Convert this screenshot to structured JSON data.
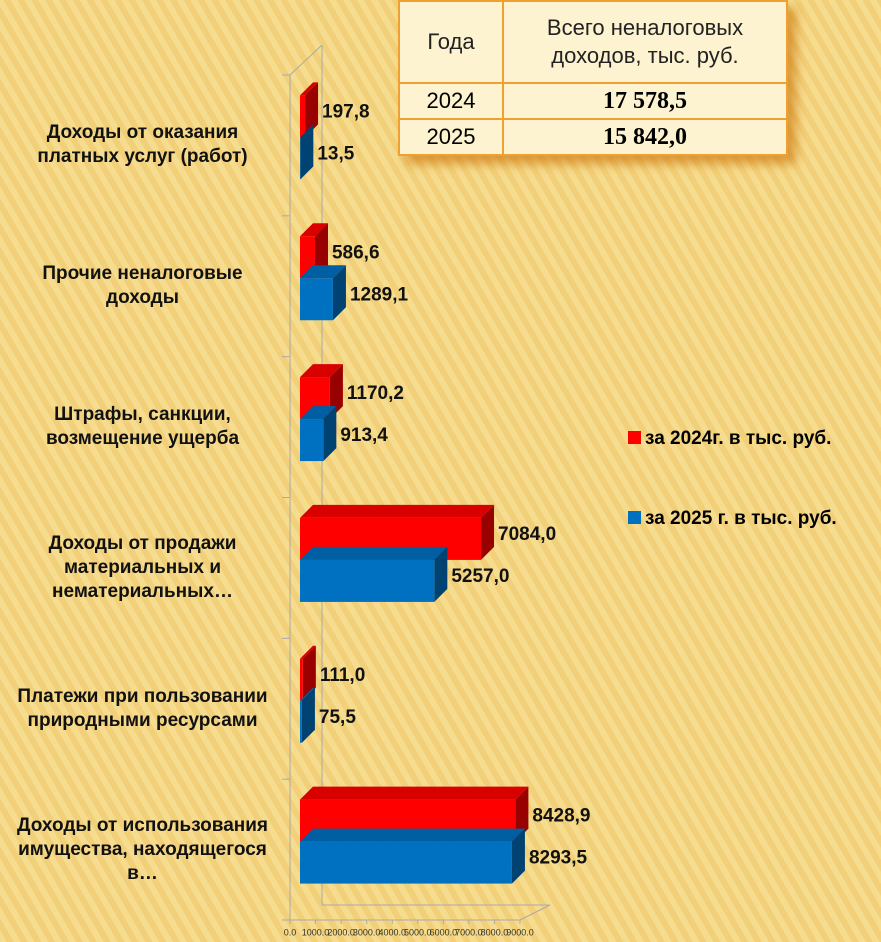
{
  "chart_data": {
    "type": "barh",
    "categories": [
      "Доходы от оказания платных услуг (работ)",
      "Прочие неналоговые доходы",
      "Штрафы, санкции, возмещение ущерба",
      "Доходы от продажи материальных и нематериальных…",
      "Платежи при пользовании природными ресурсами",
      "Доходы от использования имущества, находящегося в…"
    ],
    "series": [
      {
        "name": "за 2024г. в тыс. руб.",
        "color": "#ff0000",
        "values": [
          197.8,
          586.6,
          1170.2,
          7084.0,
          111.0,
          8428.9
        ],
        "value_labels": [
          "197,8",
          "586,6",
          "1170,2",
          "7084,0",
          "111,0",
          "8428,9"
        ]
      },
      {
        "name": "за 2025 г. в тыс. руб.",
        "color": "#0070c0",
        "values": [
          13.5,
          1289.1,
          913.4,
          5257.0,
          75.5,
          8293.5
        ],
        "value_labels": [
          "13,5",
          "1289,1",
          "913,4",
          "5257,0",
          "75,5",
          "8293,5"
        ]
      }
    ],
    "xlim": [
      0,
      9000
    ],
    "xticks": [
      {
        "value": 0,
        "label": "0.0"
      },
      {
        "value": 1000,
        "label": "1000.0"
      },
      {
        "value": 2000,
        "label": "2000.0"
      },
      {
        "value": 3000,
        "label": "3000.0"
      },
      {
        "value": 4000,
        "label": "4000.0"
      },
      {
        "value": 5000,
        "label": "5000.0"
      },
      {
        "value": 6000,
        "label": "6000.0"
      },
      {
        "value": 7000,
        "label": "7000.0"
      },
      {
        "value": 8000,
        "label": "8000.0"
      },
      {
        "value": 9000,
        "label": "9000.0"
      }
    ],
    "legend": "right"
  },
  "table": {
    "header": [
      "Года",
      "Всего неналоговых доходов, тыс. руб."
    ],
    "rows": [
      [
        "2024",
        "17 578,5"
      ],
      [
        "2025",
        "15 842,0"
      ]
    ]
  }
}
